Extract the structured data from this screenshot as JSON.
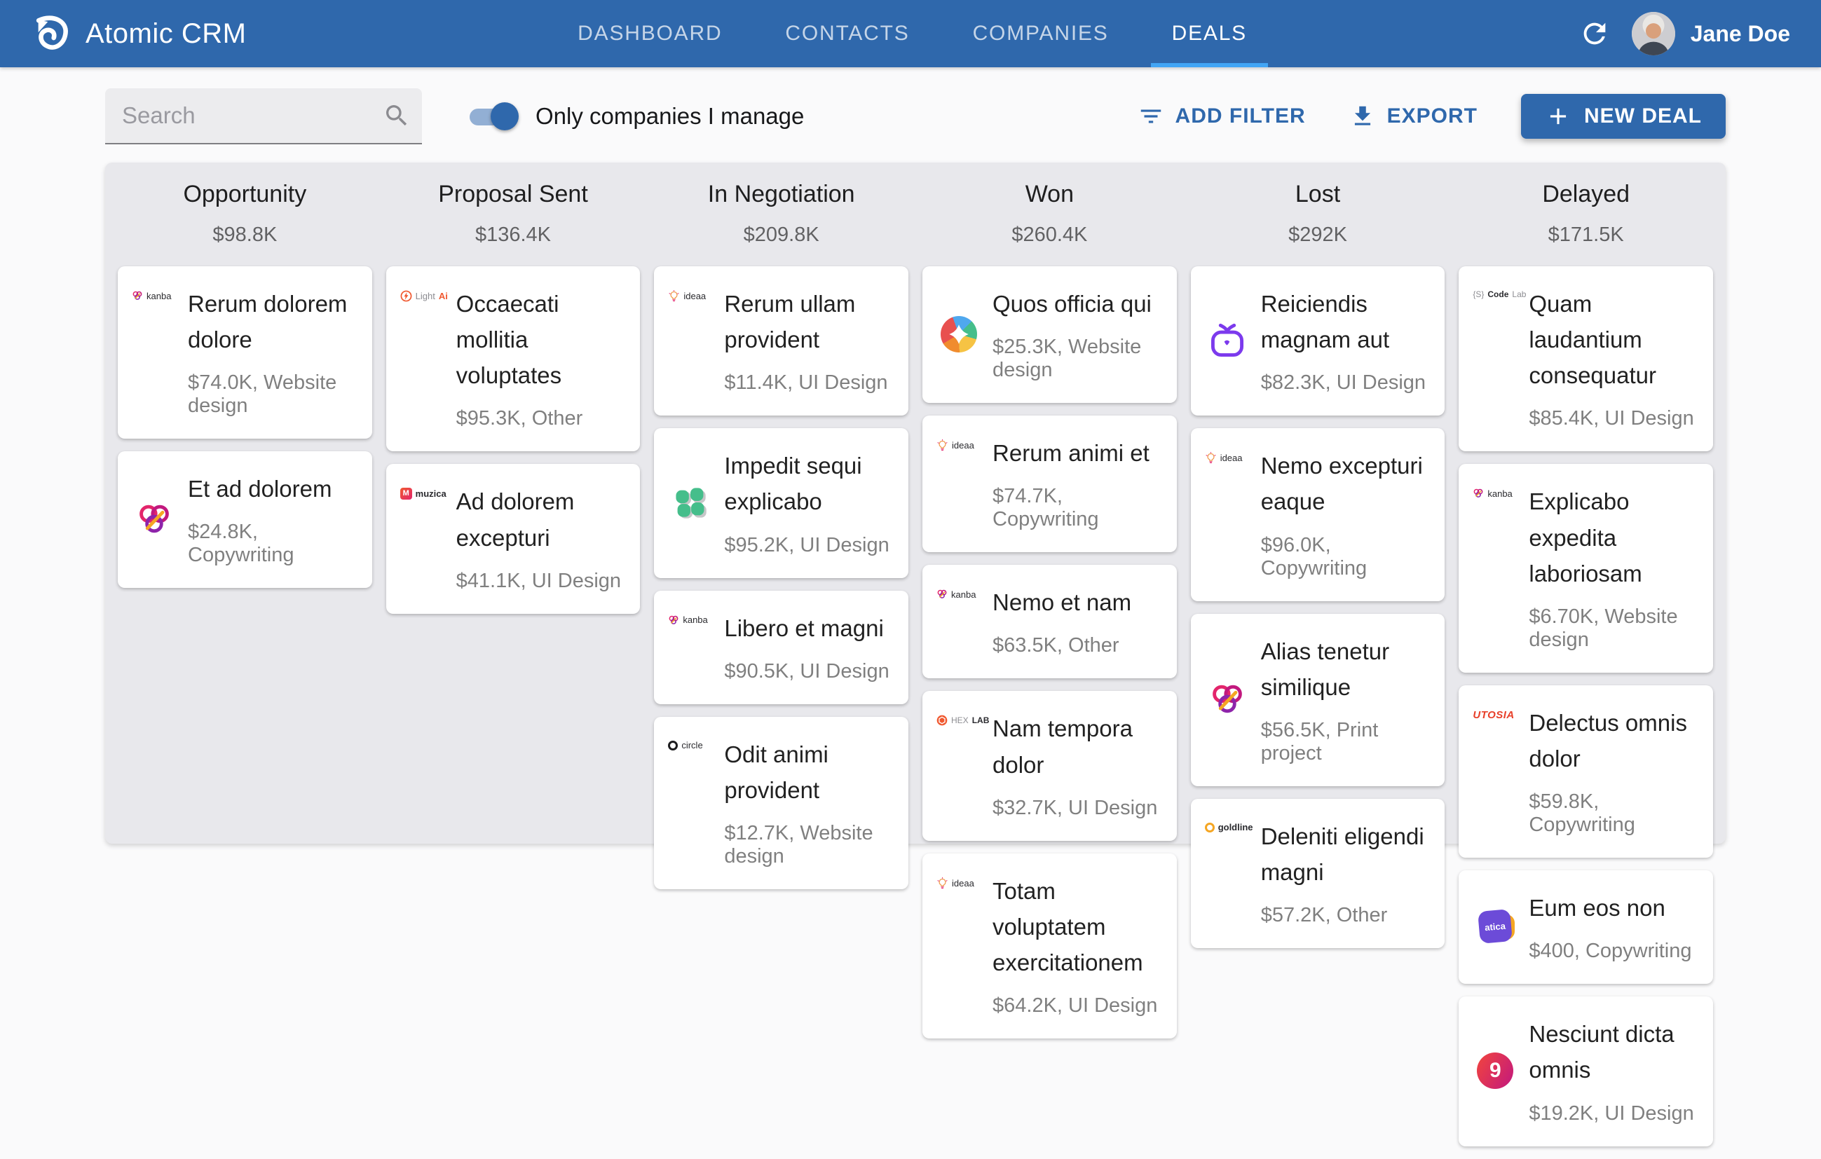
{
  "header": {
    "app_title": "Atomic CRM",
    "nav": [
      {
        "label": "DASHBOARD",
        "active": false
      },
      {
        "label": "CONTACTS",
        "active": false
      },
      {
        "label": "COMPANIES",
        "active": false
      },
      {
        "label": "DEALS",
        "active": true
      }
    ],
    "user_name": "Jane Doe"
  },
  "toolbar": {
    "search_placeholder": "Search",
    "toggle_label": "Only companies I manage",
    "toggle_on": true,
    "add_filter_label": "ADD FILTER",
    "export_label": "EXPORT",
    "new_deal_label": "NEW DEAL"
  },
  "board": {
    "columns": [
      {
        "title": "Opportunity",
        "total": "$98.8K",
        "cards": [
          {
            "logo": "kanba",
            "title": "Rerum dolorem dolore",
            "subtitle": "$74.0K, Website design"
          },
          {
            "logo": "trefoil",
            "title": "Et ad dolorem",
            "subtitle": "$24.8K, Copywriting"
          }
        ]
      },
      {
        "title": "Proposal Sent",
        "total": "$136.4K",
        "cards": [
          {
            "logo": "lightai",
            "title": "Occaecati mollitia voluptates",
            "subtitle": "$95.3K, Other"
          },
          {
            "logo": "muzica",
            "title": "Ad dolorem excepturi",
            "subtitle": "$41.1K, UI Design"
          }
        ]
      },
      {
        "title": "In Negotiation",
        "total": "$209.8K",
        "cards": [
          {
            "logo": "ideaa",
            "title": "Rerum ullam provident",
            "subtitle": "$11.4K, UI Design"
          },
          {
            "logo": "clover",
            "title": "Impedit sequi explicabo",
            "subtitle": "$95.2K, UI Design"
          },
          {
            "logo": "kanba",
            "title": "Libero et magni",
            "subtitle": "$90.5K, UI Design"
          },
          {
            "logo": "circle",
            "title": "Odit animi provident",
            "subtitle": "$12.7K, Website design"
          }
        ]
      },
      {
        "title": "Won",
        "total": "$260.4K",
        "cards": [
          {
            "logo": "pie",
            "title": "Quos officia qui",
            "subtitle": "$25.3K, Website design"
          },
          {
            "logo": "ideaa",
            "title": "Rerum animi et",
            "subtitle": "$74.7K, Copywriting"
          },
          {
            "logo": "kanba",
            "title": "Nemo et nam",
            "subtitle": "$63.5K, Other"
          },
          {
            "logo": "hexlab",
            "title": "Nam tempora dolor",
            "subtitle": "$32.7K, UI Design"
          },
          {
            "logo": "ideaa",
            "title": "Totam voluptatem exercitationem",
            "subtitle": "$64.2K, UI Design"
          }
        ]
      },
      {
        "title": "Lost",
        "total": "$292K",
        "cards": [
          {
            "logo": "tvpurple",
            "title": "Reiciendis magnam aut",
            "subtitle": "$82.3K, UI Design"
          },
          {
            "logo": "ideaa",
            "title": "Nemo excepturi eaque",
            "subtitle": "$96.0K, Copywriting"
          },
          {
            "logo": "trefoil",
            "title": "Alias tenetur similique",
            "subtitle": "$56.5K, Print project"
          },
          {
            "logo": "goldline",
            "title": "Deleniti eligendi magni",
            "subtitle": "$57.2K, Other"
          }
        ]
      },
      {
        "title": "Delayed",
        "total": "$171.5K",
        "cards": [
          {
            "logo": "codelab",
            "title": "Quam laudantium consequatur",
            "subtitle": "$85.4K, UI Design"
          },
          {
            "logo": "kanba",
            "title": "Explicabo expedita laboriosam",
            "subtitle": "$6.70K, Website design"
          },
          {
            "logo": "utosia",
            "title": "Delectus omnis dolor",
            "subtitle": "$59.8K, Copywriting"
          },
          {
            "logo": "atica",
            "title": "Eum eos non",
            "subtitle": "$400, Copywriting"
          },
          {
            "logo": "nine",
            "title": "Nesciunt dicta omnis",
            "subtitle": "$19.2K, UI Design"
          }
        ]
      }
    ]
  },
  "icons": {
    "logo_types": [
      "kanba-logo",
      "trefoil-logo",
      "lightai-logo",
      "muzica-logo",
      "ideaa-logo",
      "clover-logo",
      "circle-logo",
      "pie-logo",
      "hexlab-logo",
      "tvpurple-logo",
      "goldline-logo",
      "codelab-logo",
      "utosia-logo",
      "atica-logo",
      "nine-logo"
    ],
    "header_icons": [
      "app-logo-icon",
      "refresh-icon"
    ],
    "toolbar_icons": [
      "search-icon",
      "filter-icon",
      "download-icon",
      "plus-icon"
    ]
  },
  "colors": {
    "header_bg": "#2F68AC",
    "accent_blue": "#2F68AC",
    "active_tab_underline": "#42A5F5",
    "board_bg": "#E8E8EC",
    "page_bg": "#FAFAFB",
    "card_bg": "#FFFFFF",
    "primary_text": "#222226",
    "secondary_text": "#75757A"
  }
}
